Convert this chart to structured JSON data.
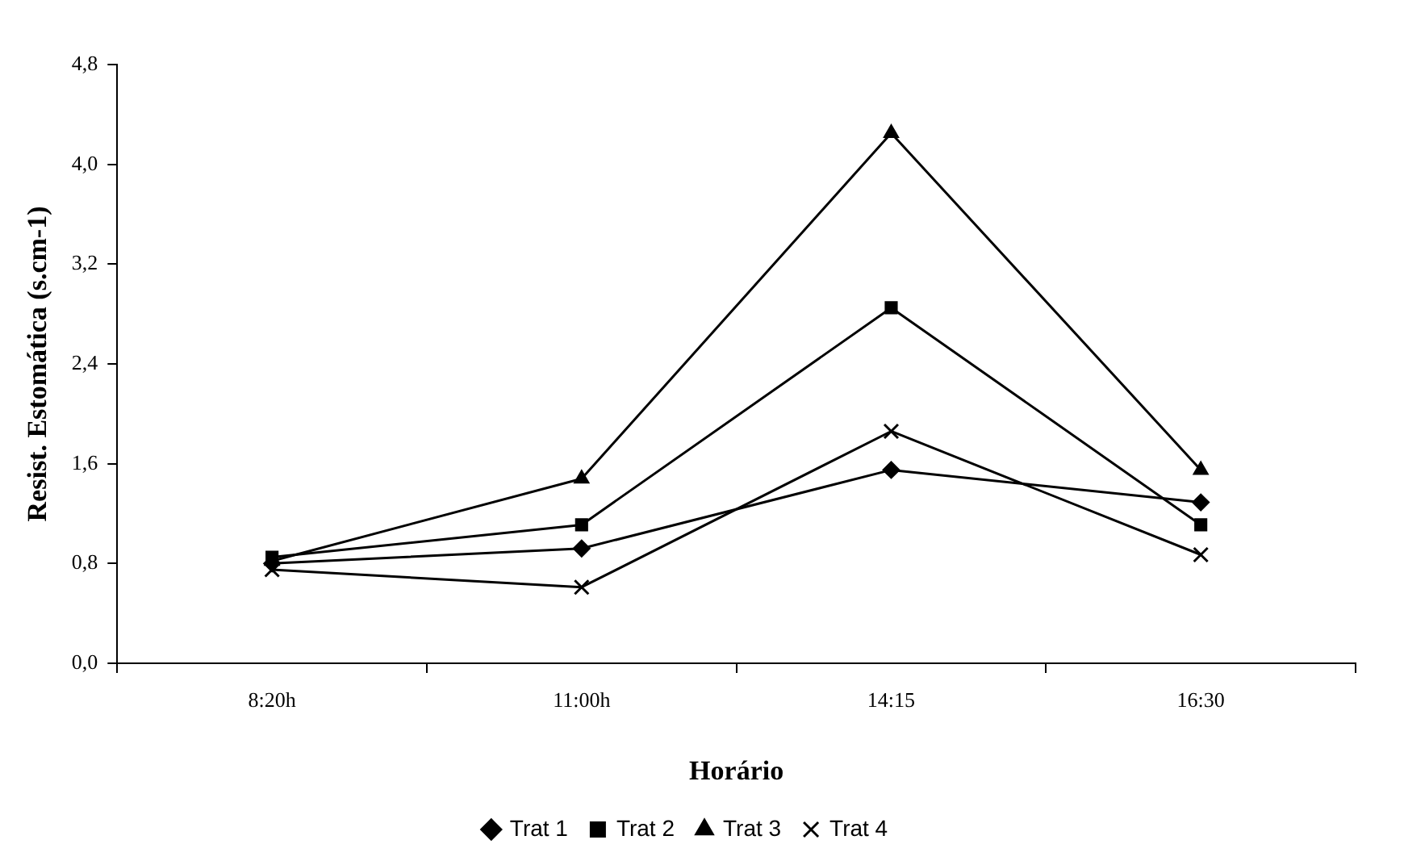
{
  "chart_data": {
    "type": "line",
    "xlabel": "Horário",
    "ylabel": "Resist. Estomática (s.cm-1)",
    "categories": [
      "8:20h",
      "11:00h",
      "14:15",
      "16:30"
    ],
    "series": [
      {
        "name": "Trat 1",
        "color": "#000000",
        "marker": "diamond",
        "values": [
          0.8,
          0.92,
          1.55,
          1.29
        ]
      },
      {
        "name": "Trat 2",
        "color": "#000000",
        "marker": "square",
        "values": [
          0.85,
          1.11,
          2.85,
          1.11
        ]
      },
      {
        "name": "Trat 3",
        "color": "#000000",
        "marker": "triangle",
        "values": [
          0.82,
          1.48,
          4.25,
          1.55
        ]
      },
      {
        "name": "Trat 4",
        "color": "#000000",
        "marker": "cross",
        "values": [
          0.75,
          0.61,
          1.86,
          0.87
        ]
      }
    ],
    "ylim": [
      0,
      4.8
    ],
    "yticks": [
      {
        "value": 0,
        "label": "0,0"
      },
      {
        "value": 0.8,
        "label": "0,8"
      },
      {
        "value": 1.6,
        "label": "1,6"
      },
      {
        "value": 2.4,
        "label": "2,4"
      },
      {
        "value": 3.2,
        "label": "3,2"
      },
      {
        "value": 4,
        "label": "4,0"
      },
      {
        "value": 4.8,
        "label": "4,8"
      }
    ],
    "grid": false,
    "legend": "bottom",
    "line_style": "solid"
  }
}
